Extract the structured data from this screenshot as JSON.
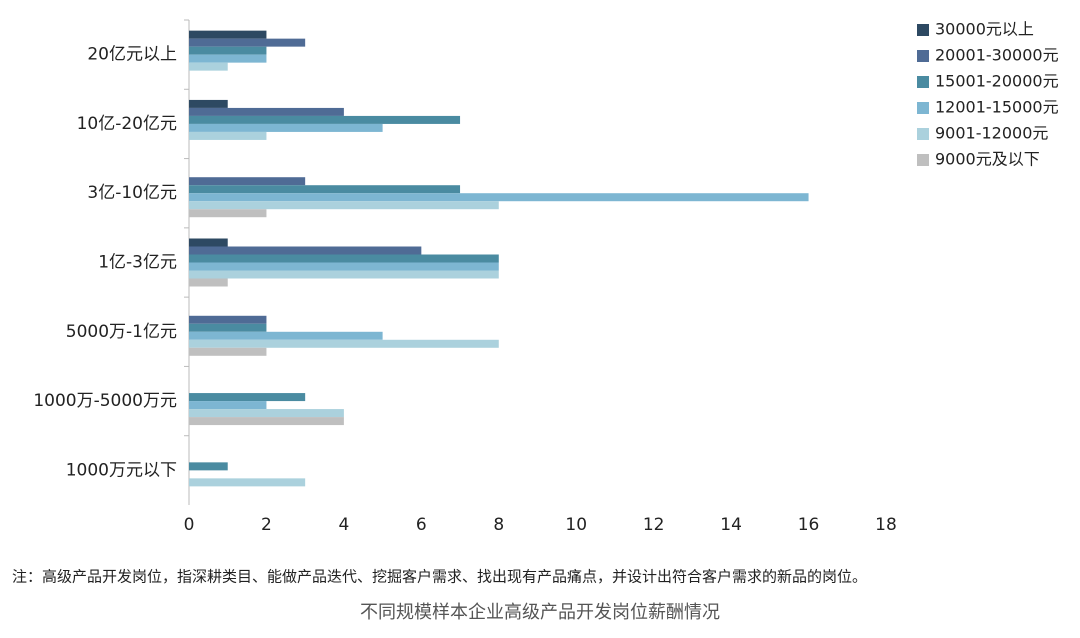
{
  "chart_data": {
    "type": "bar",
    "orientation": "horizontal",
    "title": "不同规模样本企业高级产品开发岗位薪酬情况",
    "note": "注：高级产品开发岗位，指深耕类目、能做产品迭代、挖掘客户需求、找出现有产品痛点，并设计出符合客户需求的新品的岗位。",
    "categories": [
      "20亿元以上",
      "10亿-20亿元",
      "3亿-10亿元",
      "1亿-3亿元",
      "5000万-1亿元",
      "1000万-5000万元",
      "1000万元以下"
    ],
    "series": [
      {
        "name": "30000元以上",
        "color": "#2d4962",
        "values": [
          2,
          1,
          0,
          1,
          0,
          0,
          0
        ]
      },
      {
        "name": "20001-30000元",
        "color": "#4f6b95",
        "values": [
          3,
          4,
          3,
          6,
          2,
          0,
          0
        ]
      },
      {
        "name": "15001-20000元",
        "color": "#4a8ba1",
        "values": [
          2,
          7,
          7,
          8,
          2,
          3,
          1
        ]
      },
      {
        "name": "12001-15000元",
        "color": "#7db6d2",
        "values": [
          2,
          5,
          16,
          8,
          5,
          2,
          0
        ]
      },
      {
        "name": "9001-12000元",
        "color": "#abd1dd",
        "values": [
          1,
          2,
          8,
          8,
          8,
          4,
          3
        ]
      },
      {
        "name": "9000元及以下",
        "color": "#bfbfbf",
        "values": [
          0,
          0,
          2,
          1,
          2,
          4,
          0
        ]
      }
    ],
    "xlim": [
      0,
      18
    ],
    "xticks": [
      0,
      2,
      4,
      6,
      8,
      10,
      12,
      14,
      16,
      18
    ],
    "legend": "right"
  }
}
